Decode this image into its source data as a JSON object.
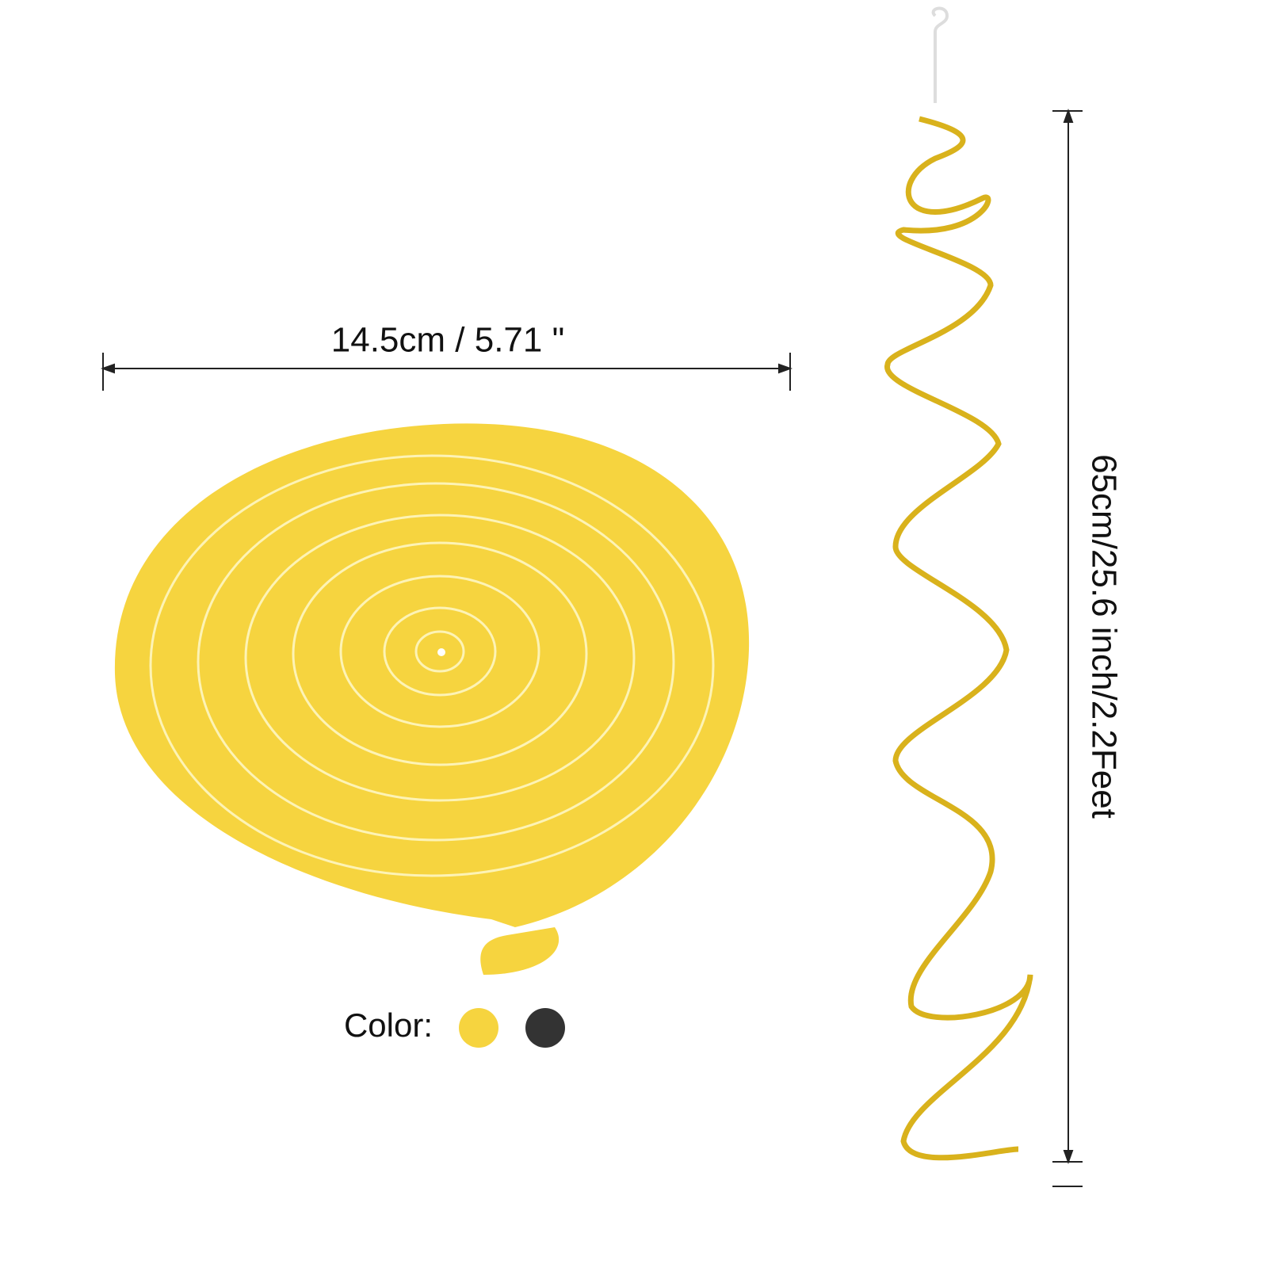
{
  "width_label": "14.5cm / 5.71 \"",
  "length_label": "65cm/25.6 inch/2.2Feet",
  "color_label": "Color:"
}
